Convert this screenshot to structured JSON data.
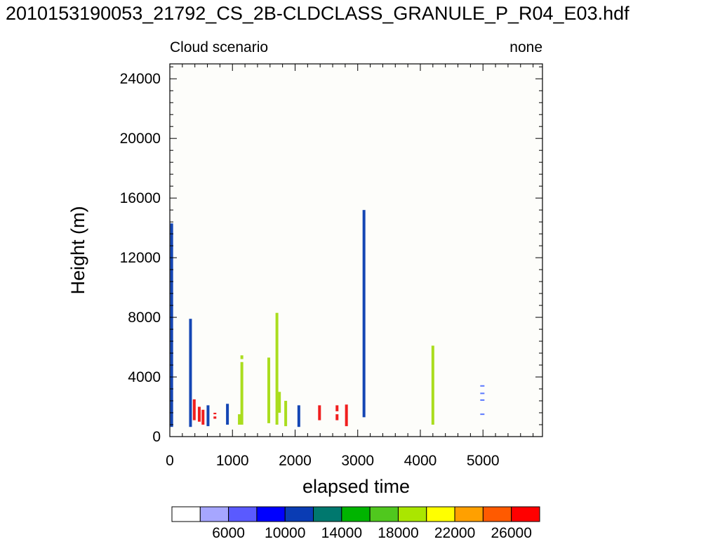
{
  "page_title": "2010153190053_21792_CS_2B-CLDCLASS_GRANULE_P_R04_E03.hdf",
  "chart_data": {
    "type": "bar",
    "title": "2010153190053_21792_CS_2B-CLDCLASS_GRANULE_P_R04_E03.hdf",
    "left_string": "Cloud scenario",
    "right_string": "none",
    "xlabel": "elapsed time",
    "ylabel": "Height (m)",
    "xlim": [
      0,
      5950
    ],
    "ylim": [
      0,
      25000
    ],
    "x_ticks": [
      0,
      1000,
      2000,
      3000,
      4000,
      5000
    ],
    "y_ticks": [
      0,
      4000,
      8000,
      12000,
      16000,
      20000,
      24000
    ],
    "grid": false,
    "colorbar": {
      "position": "bottom",
      "colors": [
        "#ffffff",
        "#a6a6ff",
        "#5a5aff",
        "#0000ff",
        "#0a3cb4",
        "#00786e",
        "#00b400",
        "#50c81e",
        "#aae600",
        "#ffff00",
        "#ffa000",
        "#ff5a00",
        "#ff0000"
      ],
      "labels": [
        "6000",
        "10000",
        "14000",
        "18000",
        "22000",
        "26000"
      ]
    },
    "bars": [
      {
        "x": 30,
        "y0": 650,
        "y1": 14300,
        "color": "#1446b4"
      },
      {
        "x": 330,
        "y0": 650,
        "y1": 7900,
        "color": "#1446b4"
      },
      {
        "x": 390,
        "y0": 1100,
        "y1": 2500,
        "color": "#f01e1e"
      },
      {
        "x": 470,
        "y0": 1000,
        "y1": 2000,
        "color": "#f01e1e"
      },
      {
        "x": 530,
        "y0": 800,
        "y1": 1800,
        "color": "#f01e1e"
      },
      {
        "x": 610,
        "y0": 700,
        "y1": 2100,
        "color": "#1446b4"
      },
      {
        "x": 720,
        "y0": 1200,
        "y1": 1350,
        "color": "#f01e1e"
      },
      {
        "x": 720,
        "y0": 1500,
        "y1": 1600,
        "color": "#f01e1e"
      },
      {
        "x": 920,
        "y0": 800,
        "y1": 2200,
        "color": "#1446b4"
      },
      {
        "x": 1110,
        "y0": 800,
        "y1": 1500,
        "color": "#aadd1e"
      },
      {
        "x": 1150,
        "y0": 800,
        "y1": 5000,
        "color": "#aadd1e"
      },
      {
        "x": 1150,
        "y0": 5200,
        "y1": 5450,
        "color": "#aadd1e"
      },
      {
        "x": 1580,
        "y0": 900,
        "y1": 5300,
        "color": "#aadd1e"
      },
      {
        "x": 1710,
        "y0": 800,
        "y1": 8300,
        "color": "#aadd1e"
      },
      {
        "x": 1750,
        "y0": 1600,
        "y1": 3000,
        "color": "#aadd1e"
      },
      {
        "x": 1850,
        "y0": 700,
        "y1": 2400,
        "color": "#aadd1e"
      },
      {
        "x": 2060,
        "y0": 650,
        "y1": 2100,
        "color": "#1446b4"
      },
      {
        "x": 2390,
        "y0": 1100,
        "y1": 2100,
        "color": "#f01e1e"
      },
      {
        "x": 2670,
        "y0": 1100,
        "y1": 1500,
        "color": "#f01e1e"
      },
      {
        "x": 2670,
        "y0": 1700,
        "y1": 2100,
        "color": "#f01e1e"
      },
      {
        "x": 2820,
        "y0": 700,
        "y1": 2150,
        "color": "#f01e1e"
      },
      {
        "x": 3100,
        "y0": 1300,
        "y1": 15200,
        "color": "#1446b4"
      },
      {
        "x": 4200,
        "y0": 800,
        "y1": 6100,
        "color": "#aadd1e"
      }
    ],
    "dashes": [
      {
        "x": 4990,
        "y": 3400,
        "color": "#5a78ff"
      },
      {
        "x": 4990,
        "y": 2900,
        "color": "#5a78ff"
      },
      {
        "x": 4990,
        "y": 2450,
        "color": "#5a78ff"
      },
      {
        "x": 4990,
        "y": 1500,
        "color": "#5a78ff"
      }
    ]
  }
}
